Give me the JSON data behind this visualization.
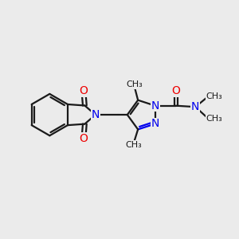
{
  "bg_color": "#ebebeb",
  "bond_color": "#1a1a1a",
  "N_color": "#0000ee",
  "O_color": "#ee0000",
  "font_size": 9,
  "bond_width": 1.6,
  "figsize": [
    3.0,
    3.0
  ],
  "dpi": 100,
  "xlim": [
    0,
    10
  ],
  "ylim": [
    0,
    10
  ]
}
